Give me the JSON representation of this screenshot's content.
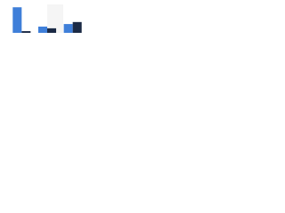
{
  "chart_data": {
    "type": "bar",
    "categories": [
      null,
      null,
      null
    ],
    "series": [
      {
        "color": "#3f7fd9",
        "values": [
          90,
          22,
          31
        ]
      },
      {
        "color": "#1b2a45",
        "values": [
          6,
          16,
          38
        ]
      }
    ],
    "ylim": [
      0,
      100
    ]
  }
}
